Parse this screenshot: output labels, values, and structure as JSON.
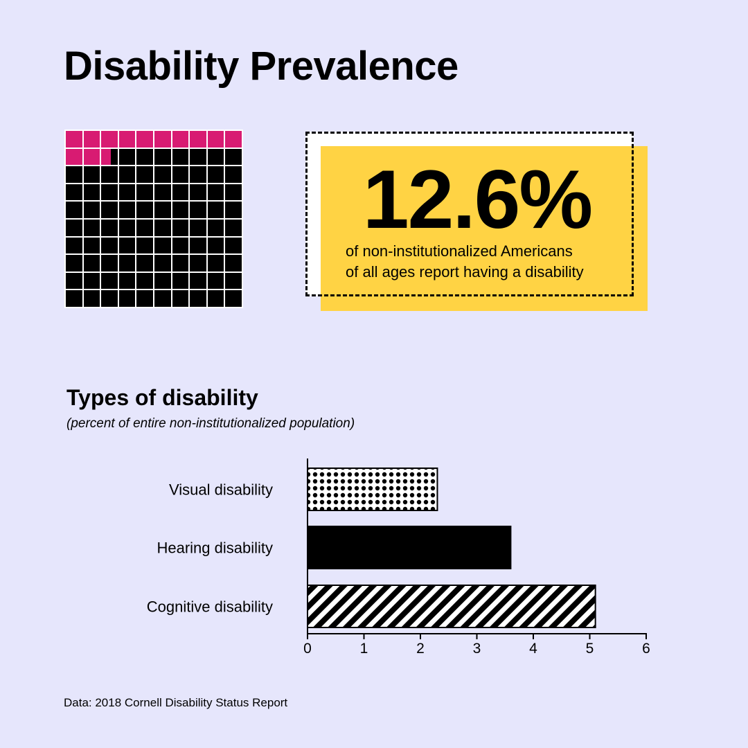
{
  "title": "Disability Prevalence",
  "waffle": {
    "percent": 12.6,
    "total_cells": 100,
    "highlight_color": "#d81b72",
    "base_color": "#000000"
  },
  "stat": {
    "value": "12.6%",
    "caption_line1": "of non-institutionalized Americans",
    "caption_line2": "of all ages report having a disability",
    "highlight_color": "#ffd344"
  },
  "section": {
    "title": "Types of disability",
    "subtitle": "(percent of entire non-institutionalized population)"
  },
  "chart_data": {
    "type": "bar",
    "orientation": "horizontal",
    "categories": [
      "Visual disability",
      "Hearing disability",
      "Cognitive disability"
    ],
    "values": [
      2.3,
      3.6,
      5.1
    ],
    "patterns": [
      "dots",
      "solid",
      "diagonal-stripes"
    ],
    "xlim": [
      0,
      6
    ],
    "xticks": [
      "0",
      "1",
      "2",
      "3",
      "4",
      "5",
      "6"
    ],
    "grid": false
  },
  "source": "Data: 2018 Cornell Disability Status Report"
}
